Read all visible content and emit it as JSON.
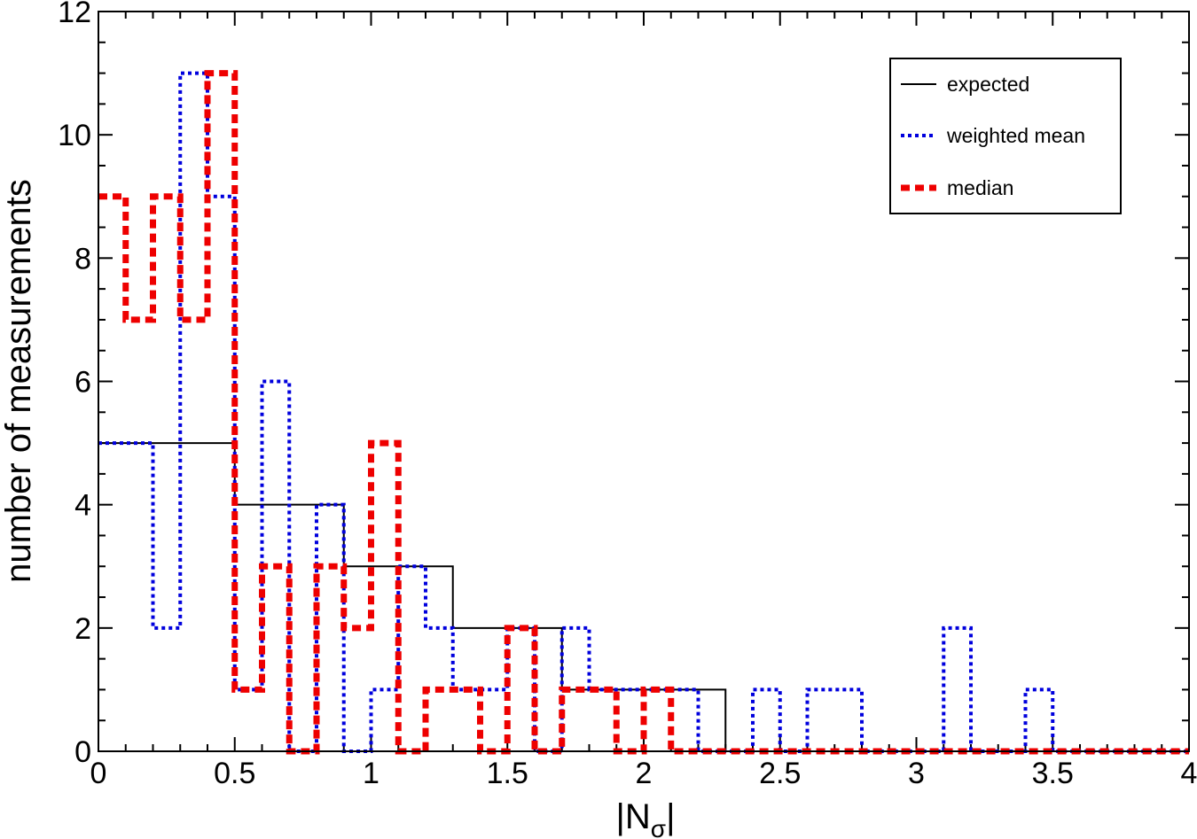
{
  "chart_data": {
    "type": "line",
    "xlabel_main": "|N",
    "xlabel_sub": "σ",
    "xlabel_end": "|",
    "ylabel": "number of measurements",
    "xlim": [
      0,
      4
    ],
    "ylim": [
      0,
      12
    ],
    "x_ticks": [
      "0",
      "0.5",
      "1",
      "1.5",
      "2",
      "2.5",
      "3",
      "3.5",
      "4"
    ],
    "y_ticks": [
      "0",
      "2",
      "4",
      "6",
      "8",
      "10",
      "12"
    ],
    "grid": false,
    "legend_position": "top-right",
    "series": [
      {
        "name": "expected",
        "style": "solid",
        "color": "#000000",
        "edges": [
          0,
          0.5,
          0.9,
          1.3,
          1.7,
          2.3,
          4.0
        ],
        "values": [
          5,
          4,
          3,
          2,
          1,
          0
        ]
      },
      {
        "name": "weighted mean",
        "style": "dotted",
        "color": "#0000dd",
        "edges": [
          0,
          0.2,
          0.3,
          0.4,
          0.5,
          0.6,
          0.7,
          0.8,
          0.9,
          1.0,
          1.1,
          1.2,
          1.3,
          1.4,
          1.5,
          1.6,
          1.7,
          1.8,
          1.9,
          2.0,
          2.1,
          2.2,
          2.3,
          2.4,
          2.5,
          2.6,
          2.7,
          2.8,
          3.1,
          3.2,
          3.4,
          3.5,
          4.0
        ],
        "values": [
          5,
          2,
          11,
          9,
          1,
          6,
          0,
          4,
          0,
          1,
          3,
          2,
          1,
          1,
          2,
          0,
          2,
          1,
          1,
          1,
          1,
          0,
          0,
          1,
          0,
          1,
          1,
          0,
          2,
          0,
          1,
          0
        ]
      },
      {
        "name": "median",
        "style": "dashed",
        "color": "#ee0000",
        "edges": [
          0,
          0.1,
          0.2,
          0.3,
          0.4,
          0.5,
          0.6,
          0.7,
          0.8,
          0.9,
          1.0,
          1.1,
          1.2,
          1.3,
          1.4,
          1.5,
          1.6,
          1.7,
          1.8,
          1.9,
          2.0,
          2.1,
          4.0
        ],
        "values": [
          9,
          7,
          9,
          7,
          11,
          1,
          3,
          0,
          3,
          2,
          5,
          0,
          1,
          1,
          0,
          2,
          0,
          1,
          1,
          0,
          1,
          0
        ]
      }
    ]
  }
}
